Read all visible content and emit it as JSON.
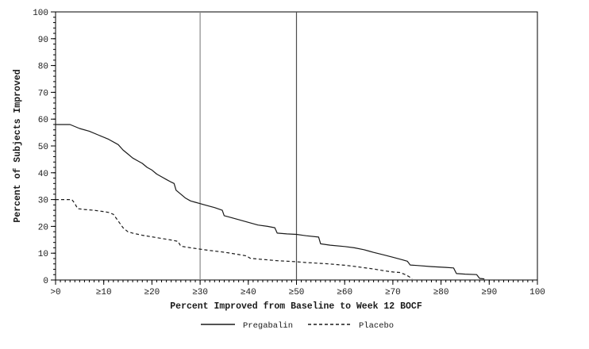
{
  "figure": {
    "background": "#ffffff",
    "frame_color": "#000000",
    "text_color": "#1a1a1a"
  },
  "chart_data": {
    "type": "line",
    "title": "",
    "xlabel": "Percent Improved from Baseline to Week 12 BOCF",
    "ylabel": "Percent of Subjects Improved",
    "xlim": [
      0,
      100
    ],
    "ylim": [
      0,
      100
    ],
    "grid": "off",
    "legend_position": "bottom-center",
    "x_tick_values": [
      0,
      10,
      20,
      30,
      40,
      50,
      60,
      70,
      80,
      90,
      100
    ],
    "x_tick_labels": [
      ">0",
      "≥10",
      "≥20",
      "≥30",
      "≥40",
      "≥50",
      "≥60",
      "≥70",
      "≥80",
      "≥90",
      "100"
    ],
    "y_tick_values": [
      0,
      10,
      20,
      30,
      40,
      50,
      60,
      70,
      80,
      90,
      100
    ],
    "x_minor_step": 1,
    "y_minor_step": 2,
    "reference_lines": [
      {
        "x": 30,
        "color": "#8a8a8a"
      },
      {
        "x": 50,
        "color": "#4d4d4d"
      }
    ],
    "series": [
      {
        "name": "Pregabalin",
        "style": "solid",
        "color": "#1a1a1a",
        "points": [
          [
            0,
            58
          ],
          [
            3,
            58
          ],
          [
            5,
            56.5
          ],
          [
            7,
            55.5
          ],
          [
            9,
            54
          ],
          [
            11,
            52.5
          ],
          [
            13,
            50.5
          ],
          [
            14,
            48.5
          ],
          [
            15,
            47
          ],
          [
            16,
            45.5
          ],
          [
            17,
            44.5
          ],
          [
            18,
            43.5
          ],
          [
            19,
            42
          ],
          [
            20,
            41
          ],
          [
            21,
            39.5
          ],
          [
            22,
            38.5
          ],
          [
            23,
            37.5
          ],
          [
            24,
            36.5
          ],
          [
            24.6,
            36
          ],
          [
            25,
            33.5
          ],
          [
            26,
            32
          ],
          [
            27,
            30.5
          ],
          [
            28,
            29.5
          ],
          [
            29,
            29
          ],
          [
            30,
            28.5
          ],
          [
            32,
            27.5
          ],
          [
            33,
            27
          ],
          [
            34.6,
            26
          ],
          [
            35,
            24
          ],
          [
            36,
            23.5
          ],
          [
            38,
            22.5
          ],
          [
            40,
            21.5
          ],
          [
            42,
            20.5
          ],
          [
            44,
            20
          ],
          [
            45.5,
            19.5
          ],
          [
            46,
            17.5
          ],
          [
            48,
            17.2
          ],
          [
            50,
            17
          ],
          [
            52,
            16.5
          ],
          [
            54.6,
            16
          ],
          [
            55,
            13.5
          ],
          [
            57,
            13
          ],
          [
            60,
            12.5
          ],
          [
            62,
            12
          ],
          [
            64,
            11.3
          ],
          [
            65,
            10.8
          ],
          [
            66,
            10.3
          ],
          [
            68,
            9.4
          ],
          [
            70,
            8.5
          ],
          [
            72,
            7.5
          ],
          [
            73,
            7
          ],
          [
            73.6,
            5.6
          ],
          [
            75,
            5.4
          ],
          [
            78,
            5
          ],
          [
            81,
            4.7
          ],
          [
            82.6,
            4.5
          ],
          [
            83.2,
            2.4
          ],
          [
            85,
            2.2
          ],
          [
            87.4,
            2
          ],
          [
            88,
            0.6
          ],
          [
            89,
            0.4
          ]
        ]
      },
      {
        "name": "Placebo",
        "style": "dashed",
        "color": "#1a1a1a",
        "points": [
          [
            0,
            30
          ],
          [
            3.4,
            30
          ],
          [
            4,
            28.5
          ],
          [
            4.6,
            26.6
          ],
          [
            6,
            26.3
          ],
          [
            8,
            26
          ],
          [
            10,
            25.5
          ],
          [
            11,
            25.2
          ],
          [
            12,
            24.5
          ],
          [
            13,
            22
          ],
          [
            14,
            19.5
          ],
          [
            15,
            18
          ],
          [
            16,
            17.5
          ],
          [
            18,
            16.7
          ],
          [
            20,
            16.1
          ],
          [
            22,
            15.5
          ],
          [
            24,
            14.9
          ],
          [
            25.4,
            14.4
          ],
          [
            26,
            12.6
          ],
          [
            28,
            12
          ],
          [
            30,
            11.5
          ],
          [
            32,
            11
          ],
          [
            34,
            10.6
          ],
          [
            36,
            10.1
          ],
          [
            38,
            9.5
          ],
          [
            39.6,
            9
          ],
          [
            40.4,
            8.1
          ],
          [
            42,
            7.8
          ],
          [
            44,
            7.5
          ],
          [
            46,
            7.2
          ],
          [
            48,
            7
          ],
          [
            50,
            6.8
          ],
          [
            52,
            6.5
          ],
          [
            54,
            6.3
          ],
          [
            56,
            6.1
          ],
          [
            58,
            5.8
          ],
          [
            60,
            5.5
          ],
          [
            62,
            5.1
          ],
          [
            64,
            4.6
          ],
          [
            66,
            4.1
          ],
          [
            68,
            3.5
          ],
          [
            70,
            3
          ],
          [
            71.4,
            2.8
          ],
          [
            72.6,
            2
          ],
          [
            73.4,
            1.2
          ],
          [
            74,
            0.4
          ]
        ]
      }
    ]
  }
}
